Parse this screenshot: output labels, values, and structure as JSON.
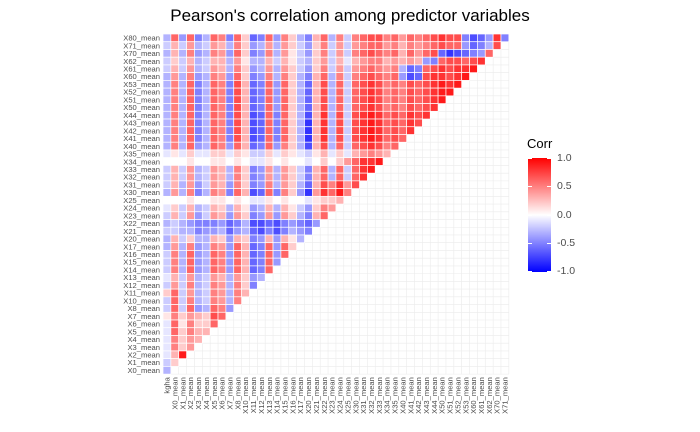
{
  "chart_data": {
    "type": "heatmap",
    "title": "Pearson's correlation among predictor variables",
    "xlabel": "",
    "ylabel": "",
    "row_labels": [
      "X80_mean",
      "X71_mean",
      "X70_mean",
      "X62_mean",
      "X61_mean",
      "X60_mean",
      "X53_mean",
      "X52_mean",
      "X51_mean",
      "X50_mean",
      "X44_mean",
      "X43_mean",
      "X42_mean",
      "X41_mean",
      "X40_mean",
      "X35_mean",
      "X34_mean",
      "X33_mean",
      "X32_mean",
      "X31_mean",
      "X30_mean",
      "X25_mean",
      "X24_mean",
      "X23_mean",
      "X22_mean",
      "X21_mean",
      "X20_mean",
      "X17_mean",
      "X16_mean",
      "X15_mean",
      "X14_mean",
      "X13_mean",
      "X12_mean",
      "X11_mean",
      "X10_mean",
      "X8_mean",
      "X7_mean",
      "X6_mean",
      "X5_mean",
      "X4_mean",
      "X3_mean",
      "X2_mean",
      "X1_mean",
      "X0_mean"
    ],
    "col_labels": [
      "kgha",
      "X0_mean",
      "X1_mean",
      "X2_mean",
      "X3_mean",
      "X4_mean",
      "X5_mean",
      "X6_mean",
      "X7_mean",
      "X8_mean",
      "X10_mean",
      "X11_mean",
      "X12_mean",
      "X13_mean",
      "X14_mean",
      "X15_mean",
      "X16_mean",
      "X17_mean",
      "X20_mean",
      "X21_mean",
      "X22_mean",
      "X23_mean",
      "X24_mean",
      "X25_mean",
      "X30_mean",
      "X31_mean",
      "X32_mean",
      "X33_mean",
      "X34_mean",
      "X35_mean",
      "X40_mean",
      "X41_mean",
      "X42_mean",
      "X43_mean",
      "X44_mean",
      "X50_mean",
      "X51_mean",
      "X52_mean",
      "X53_mean",
      "X60_mean",
      "X61_mean",
      "X62_mean",
      "X70_mean",
      "X71_mean"
    ],
    "display": "lower triangle of correlation matrix; rows listed top to bottom, columns left to right",
    "color_scale": {
      "low": "#0000ff",
      "mid": "#ffffff",
      "high": "#ff0000",
      "min": -1.0,
      "max": 1.0
    },
    "grid": true,
    "legend_position": "right",
    "rows": [
      [
        -0.3,
        0.6,
        -0.4,
        0.6,
        -0.5,
        -0.3,
        0.6,
        0.5,
        -0.5,
        0.6,
        0.2,
        -0.6,
        -0.5,
        0.6,
        -0.4,
        0.5,
        0.2,
        -0.3,
        -0.5,
        0.3,
        0.6,
        -0.3,
        0.5,
        -0.2,
        0.5,
        0.6,
        0.7,
        0.7,
        0.5,
        0.6,
        0.4,
        0.6,
        0.5,
        0.6,
        0.7,
        0.8,
        0.7,
        0.7,
        -0.5,
        -0.7,
        -0.6,
        -0.4,
        0.8,
        -0.5
      ],
      [
        -0.2,
        0.3,
        -0.2,
        0.4,
        -0.3,
        -0.2,
        0.4,
        0.3,
        -0.3,
        0.5,
        0.2,
        -0.4,
        -0.3,
        0.4,
        -0.3,
        0.4,
        0.2,
        -0.2,
        -0.4,
        0.2,
        0.5,
        -0.2,
        0.4,
        -0.2,
        0.4,
        0.5,
        0.6,
        0.6,
        0.4,
        0.5,
        0.3,
        0.5,
        0.4,
        0.5,
        0.6,
        0.7,
        0.6,
        0.6,
        -0.4,
        -0.6,
        -0.5,
        -0.3,
        0.7
      ],
      [
        -0.3,
        0.3,
        -0.3,
        0.5,
        -0.4,
        -0.3,
        0.5,
        0.4,
        -0.4,
        0.6,
        0.2,
        -0.5,
        -0.4,
        0.5,
        -0.3,
        0.4,
        0.1,
        -0.2,
        -0.4,
        0.2,
        0.5,
        -0.2,
        0.4,
        -0.2,
        0.5,
        0.6,
        0.7,
        0.6,
        0.5,
        0.6,
        0.3,
        0.6,
        0.4,
        0.6,
        0.7,
        -0.6,
        -0.8,
        -0.7,
        -0.6,
        -0.5,
        -0.4,
        0.6
      ],
      [
        -0.2,
        0.2,
        -0.2,
        0.3,
        -0.3,
        -0.2,
        0.3,
        0.3,
        -0.3,
        0.4,
        0.1,
        -0.3,
        -0.3,
        0.3,
        -0.2,
        0.3,
        0.1,
        -0.2,
        -0.3,
        0.2,
        0.4,
        -0.2,
        0.3,
        -0.1,
        0.3,
        0.4,
        0.5,
        0.5,
        0.3,
        0.4,
        0.3,
        0.4,
        0.3,
        -0.4,
        -0.5,
        0.6,
        0.7,
        0.7,
        0.6,
        0.7,
        0.8
      ],
      [
        -0.2,
        0.3,
        -0.2,
        0.4,
        -0.3,
        -0.2,
        0.4,
        0.3,
        -0.3,
        0.5,
        0.2,
        -0.4,
        -0.3,
        0.4,
        -0.3,
        0.4,
        0.2,
        -0.2,
        -0.4,
        0.2,
        0.5,
        -0.2,
        0.4,
        -0.2,
        0.4,
        0.5,
        0.6,
        0.5,
        0.4,
        0.5,
        -0.3,
        -0.6,
        -0.5,
        0.6,
        0.7,
        0.8,
        0.7,
        0.8,
        0.8,
        0.9
      ],
      [
        -0.3,
        0.4,
        -0.3,
        0.5,
        -0.4,
        -0.3,
        0.5,
        0.4,
        -0.4,
        0.6,
        0.2,
        -0.5,
        -0.4,
        0.5,
        -0.3,
        0.5,
        0.2,
        -0.3,
        -0.5,
        0.3,
        0.6,
        -0.3,
        0.5,
        -0.2,
        0.5,
        0.6,
        0.7,
        0.6,
        0.5,
        0.6,
        -0.4,
        -0.7,
        -0.6,
        0.7,
        0.8,
        0.8,
        0.7,
        0.8,
        0.9
      ],
      [
        -0.3,
        0.5,
        -0.3,
        0.6,
        -0.5,
        -0.3,
        0.6,
        0.5,
        -0.5,
        0.7,
        0.3,
        -0.6,
        -0.5,
        0.6,
        -0.4,
        0.6,
        0.2,
        -0.3,
        -0.6,
        0.3,
        0.7,
        -0.3,
        0.6,
        -0.2,
        0.6,
        0.7,
        0.8,
        0.7,
        0.5,
        0.6,
        0.5,
        0.7,
        0.6,
        0.7,
        0.8,
        0.9,
        0.8,
        0.9
      ],
      [
        -0.3,
        0.5,
        -0.3,
        0.6,
        -0.5,
        -0.3,
        0.6,
        0.5,
        -0.5,
        0.7,
        0.3,
        -0.6,
        -0.5,
        0.6,
        -0.4,
        0.6,
        0.2,
        -0.3,
        -0.6,
        0.3,
        0.7,
        -0.3,
        0.6,
        -0.2,
        0.6,
        0.7,
        0.8,
        0.7,
        0.5,
        0.6,
        0.5,
        0.7,
        0.6,
        0.7,
        0.8,
        0.9,
        0.9
      ],
      [
        -0.3,
        0.5,
        -0.3,
        0.6,
        -0.5,
        -0.3,
        0.6,
        0.5,
        -0.5,
        0.7,
        0.3,
        -0.6,
        -0.5,
        0.6,
        -0.4,
        0.6,
        0.2,
        -0.3,
        -0.6,
        0.3,
        0.7,
        -0.3,
        0.6,
        -0.2,
        0.6,
        0.7,
        0.8,
        0.7,
        0.5,
        0.6,
        0.5,
        0.7,
        0.6,
        0.7,
        0.8,
        0.9
      ],
      [
        -0.3,
        0.5,
        -0.3,
        0.6,
        -0.5,
        -0.3,
        0.6,
        0.5,
        -0.5,
        0.7,
        0.3,
        -0.6,
        -0.5,
        0.6,
        -0.4,
        0.6,
        0.2,
        -0.3,
        -0.6,
        0.3,
        0.7,
        -0.3,
        0.6,
        -0.2,
        0.6,
        0.7,
        0.8,
        0.7,
        0.5,
        0.6,
        0.5,
        0.7,
        0.6,
        0.7,
        0.8
      ],
      [
        -0.3,
        0.5,
        -0.3,
        0.6,
        -0.5,
        -0.3,
        0.6,
        0.5,
        -0.5,
        0.7,
        0.3,
        -0.7,
        -0.6,
        0.6,
        -0.5,
        0.6,
        0.2,
        -0.3,
        -0.7,
        0.3,
        0.8,
        -0.3,
        0.7,
        -0.2,
        0.7,
        0.8,
        0.9,
        0.8,
        0.6,
        0.7,
        0.6,
        0.8,
        0.7,
        0.8
      ],
      [
        -0.3,
        0.5,
        -0.3,
        0.6,
        -0.5,
        -0.3,
        0.6,
        0.5,
        -0.5,
        0.7,
        0.3,
        -0.7,
        -0.6,
        0.6,
        -0.5,
        0.6,
        0.2,
        -0.3,
        -0.8,
        0.3,
        0.8,
        -0.3,
        0.7,
        -0.2,
        0.7,
        0.8,
        0.9,
        0.8,
        0.6,
        0.7,
        0.6,
        0.8,
        0.7
      ],
      [
        -0.3,
        0.5,
        -0.3,
        0.6,
        -0.5,
        -0.3,
        0.6,
        0.5,
        -0.5,
        0.7,
        0.3,
        -0.7,
        -0.6,
        0.6,
        -0.5,
        0.6,
        0.2,
        -0.3,
        -0.8,
        0.3,
        0.8,
        -0.3,
        0.7,
        -0.2,
        0.7,
        0.8,
        0.9,
        0.8,
        0.6,
        0.7,
        0.6,
        0.8
      ],
      [
        -0.3,
        0.5,
        -0.3,
        0.6,
        -0.5,
        -0.3,
        0.6,
        0.5,
        -0.5,
        0.7,
        0.3,
        -0.7,
        -0.6,
        0.6,
        -0.5,
        0.6,
        0.2,
        -0.3,
        -0.8,
        0.3,
        0.8,
        -0.3,
        0.7,
        -0.2,
        0.7,
        0.8,
        0.9,
        0.8,
        0.6,
        0.7,
        0.6
      ],
      [
        -0.3,
        0.5,
        -0.3,
        0.6,
        -0.4,
        -0.3,
        0.6,
        0.5,
        -0.4,
        0.6,
        0.3,
        -0.6,
        -0.5,
        0.6,
        -0.4,
        0.5,
        0.2,
        -0.3,
        -0.7,
        0.3,
        0.7,
        -0.3,
        0.6,
        -0.2,
        0.6,
        0.7,
        0.8,
        0.7,
        0.5,
        0.6
      ],
      [
        -0.1,
        0.1,
        -0.1,
        0.2,
        -0.1,
        -0.1,
        0.2,
        0.2,
        -0.1,
        0.2,
        0.1,
        -0.2,
        -0.2,
        0.2,
        -0.1,
        0.2,
        0.1,
        -0.1,
        -0.2,
        0.1,
        0.3,
        -0.1,
        0.2,
        -0.1,
        0.3,
        0.4,
        0.5,
        0.4,
        0.3
      ],
      [
        0.0,
        0.0,
        0.0,
        0.1,
        0.0,
        0.0,
        0.1,
        0.1,
        0.0,
        0.1,
        0.0,
        -0.1,
        -0.1,
        0.1,
        0.0,
        0.1,
        0.0,
        0.0,
        -0.1,
        0.0,
        0.2,
        0.0,
        0.2,
        0.4,
        0.6,
        0.8,
        0.8,
        0.9
      ],
      [
        -0.2,
        0.3,
        -0.2,
        0.4,
        -0.3,
        -0.2,
        0.4,
        0.3,
        -0.3,
        0.5,
        0.2,
        -0.5,
        -0.4,
        0.4,
        -0.3,
        0.4,
        0.2,
        -0.2,
        -0.5,
        0.3,
        0.6,
        -0.3,
        0.6,
        -0.2,
        0.6,
        0.8,
        0.9
      ],
      [
        -0.2,
        0.3,
        -0.2,
        0.4,
        -0.3,
        -0.2,
        0.4,
        0.3,
        -0.3,
        0.5,
        0.2,
        -0.5,
        -0.4,
        0.4,
        -0.3,
        0.4,
        0.2,
        -0.2,
        -0.5,
        0.3,
        0.6,
        -0.3,
        0.6,
        -0.2,
        0.6,
        0.8
      ],
      [
        -0.2,
        0.3,
        -0.3,
        0.4,
        -0.4,
        -0.2,
        0.4,
        0.3,
        -0.4,
        0.5,
        0.2,
        -0.5,
        -0.4,
        0.5,
        -0.3,
        0.4,
        0.2,
        -0.3,
        -0.6,
        0.3,
        0.7,
        0.5,
        0.8,
        0.4,
        0.7
      ],
      [
        -0.3,
        0.4,
        -0.3,
        0.5,
        -0.5,
        -0.3,
        0.5,
        0.4,
        -0.5,
        0.6,
        0.3,
        -0.7,
        -0.6,
        0.6,
        -0.5,
        0.5,
        0.2,
        -0.4,
        -0.8,
        0.4,
        0.8,
        0.6,
        0.9,
        0.5
      ],
      [
        0.0,
        0.0,
        0.0,
        0.1,
        0.0,
        0.0,
        0.1,
        0.1,
        0.0,
        0.1,
        0.0,
        -0.1,
        -0.1,
        0.1,
        0.0,
        0.1,
        0.0,
        0.0,
        -0.1,
        0.1,
        0.2,
        0.2,
        0.3
      ],
      [
        -0.1,
        0.2,
        -0.2,
        0.3,
        -0.3,
        -0.2,
        0.3,
        0.2,
        -0.3,
        0.3,
        0.1,
        -0.4,
        -0.3,
        0.3,
        -0.3,
        0.3,
        0.1,
        -0.2,
        -0.4,
        0.2,
        0.5,
        0.4
      ],
      [
        -0.2,
        0.3,
        -0.2,
        0.4,
        -0.4,
        -0.2,
        0.4,
        0.3,
        -0.4,
        0.4,
        0.2,
        -0.5,
        -0.4,
        0.4,
        -0.4,
        0.4,
        0.2,
        -0.3,
        -0.5,
        0.3,
        0.6
      ],
      [
        -0.3,
        -0.2,
        -0.3,
        -0.4,
        -0.5,
        -0.5,
        -0.5,
        -0.4,
        -0.6,
        -0.5,
        -0.3,
        -0.7,
        -0.7,
        -0.6,
        -0.7,
        -0.5,
        -0.4,
        -0.5,
        -0.6,
        -0.4
      ],
      [
        -0.2,
        -0.2,
        -0.3,
        -0.3,
        -0.5,
        -0.4,
        -0.4,
        -0.3,
        -0.6,
        -0.4,
        -0.3,
        -0.6,
        -0.7,
        -0.5,
        -0.7,
        -0.5,
        -0.3,
        -0.4,
        -0.5
      ],
      [
        -0.3,
        0.3,
        -0.2,
        0.2,
        -0.3,
        -0.3,
        0.3,
        0.2,
        -0.4,
        0.3,
        0.2,
        -0.5,
        -0.4,
        0.3,
        -0.4,
        0.3,
        0.1,
        -0.3
      ],
      [
        -0.3,
        0.4,
        -0.3,
        0.5,
        -0.4,
        -0.3,
        0.5,
        0.4,
        -0.4,
        0.6,
        0.3,
        -0.6,
        -0.5,
        0.6,
        -0.4,
        0.6,
        0.2
      ],
      [
        -0.2,
        0.5,
        -0.3,
        0.6,
        -0.4,
        -0.3,
        0.6,
        0.5,
        -0.4,
        0.6,
        0.3,
        -0.6,
        -0.5,
        0.6,
        -0.4,
        0.6
      ],
      [
        -0.2,
        0.5,
        -0.3,
        0.6,
        -0.4,
        -0.3,
        0.6,
        0.5,
        -0.4,
        0.6,
        0.3,
        -0.6,
        -0.5,
        0.6,
        -0.4
      ],
      [
        -0.2,
        0.5,
        -0.3,
        0.6,
        -0.4,
        -0.3,
        0.6,
        0.5,
        -0.4,
        0.6,
        0.3,
        -0.6,
        -0.5,
        0.6
      ],
      [
        -0.1,
        0.3,
        -0.2,
        0.4,
        -0.3,
        -0.2,
        0.4,
        0.3,
        -0.3,
        0.4,
        0.2,
        -0.4,
        -0.3
      ],
      [
        -0.2,
        0.4,
        -0.2,
        0.5,
        -0.3,
        -0.2,
        0.5,
        0.4,
        -0.3,
        0.5,
        0.2,
        -0.5
      ],
      [
        0.2,
        0.6,
        -0.2,
        0.4,
        -0.3,
        -0.2,
        0.5,
        0.4,
        -0.3,
        0.5,
        0.3
      ],
      [
        -0.2,
        0.6,
        -0.2,
        0.5,
        -0.3,
        -0.2,
        0.5,
        0.4,
        -0.3,
        0.5
      ],
      [
        -0.2,
        0.6,
        -0.2,
        0.6,
        -0.4,
        -0.3,
        0.6,
        0.5,
        -0.4
      ],
      [
        0.1,
        0.5,
        0.2,
        0.4,
        0.3,
        0.2,
        0.7,
        0.6
      ],
      [
        -0.1,
        0.6,
        0.1,
        0.5,
        0.2,
        0.2,
        0.6
      ],
      [
        -0.1,
        0.6,
        0.2,
        0.5,
        0.3,
        0.3
      ],
      [
        -0.1,
        0.5,
        0.2,
        0.4,
        0.3
      ],
      [
        -0.1,
        0.5,
        0.2,
        0.4
      ],
      [
        -0.1,
        0.3,
        0.9
      ],
      [
        -0.2,
        0.2
      ],
      [
        -0.3
      ]
    ]
  },
  "legend": {
    "title": "Corr",
    "ticks": [
      "1.0",
      "0.5",
      "0.0",
      "-0.5",
      "-1.0"
    ]
  }
}
